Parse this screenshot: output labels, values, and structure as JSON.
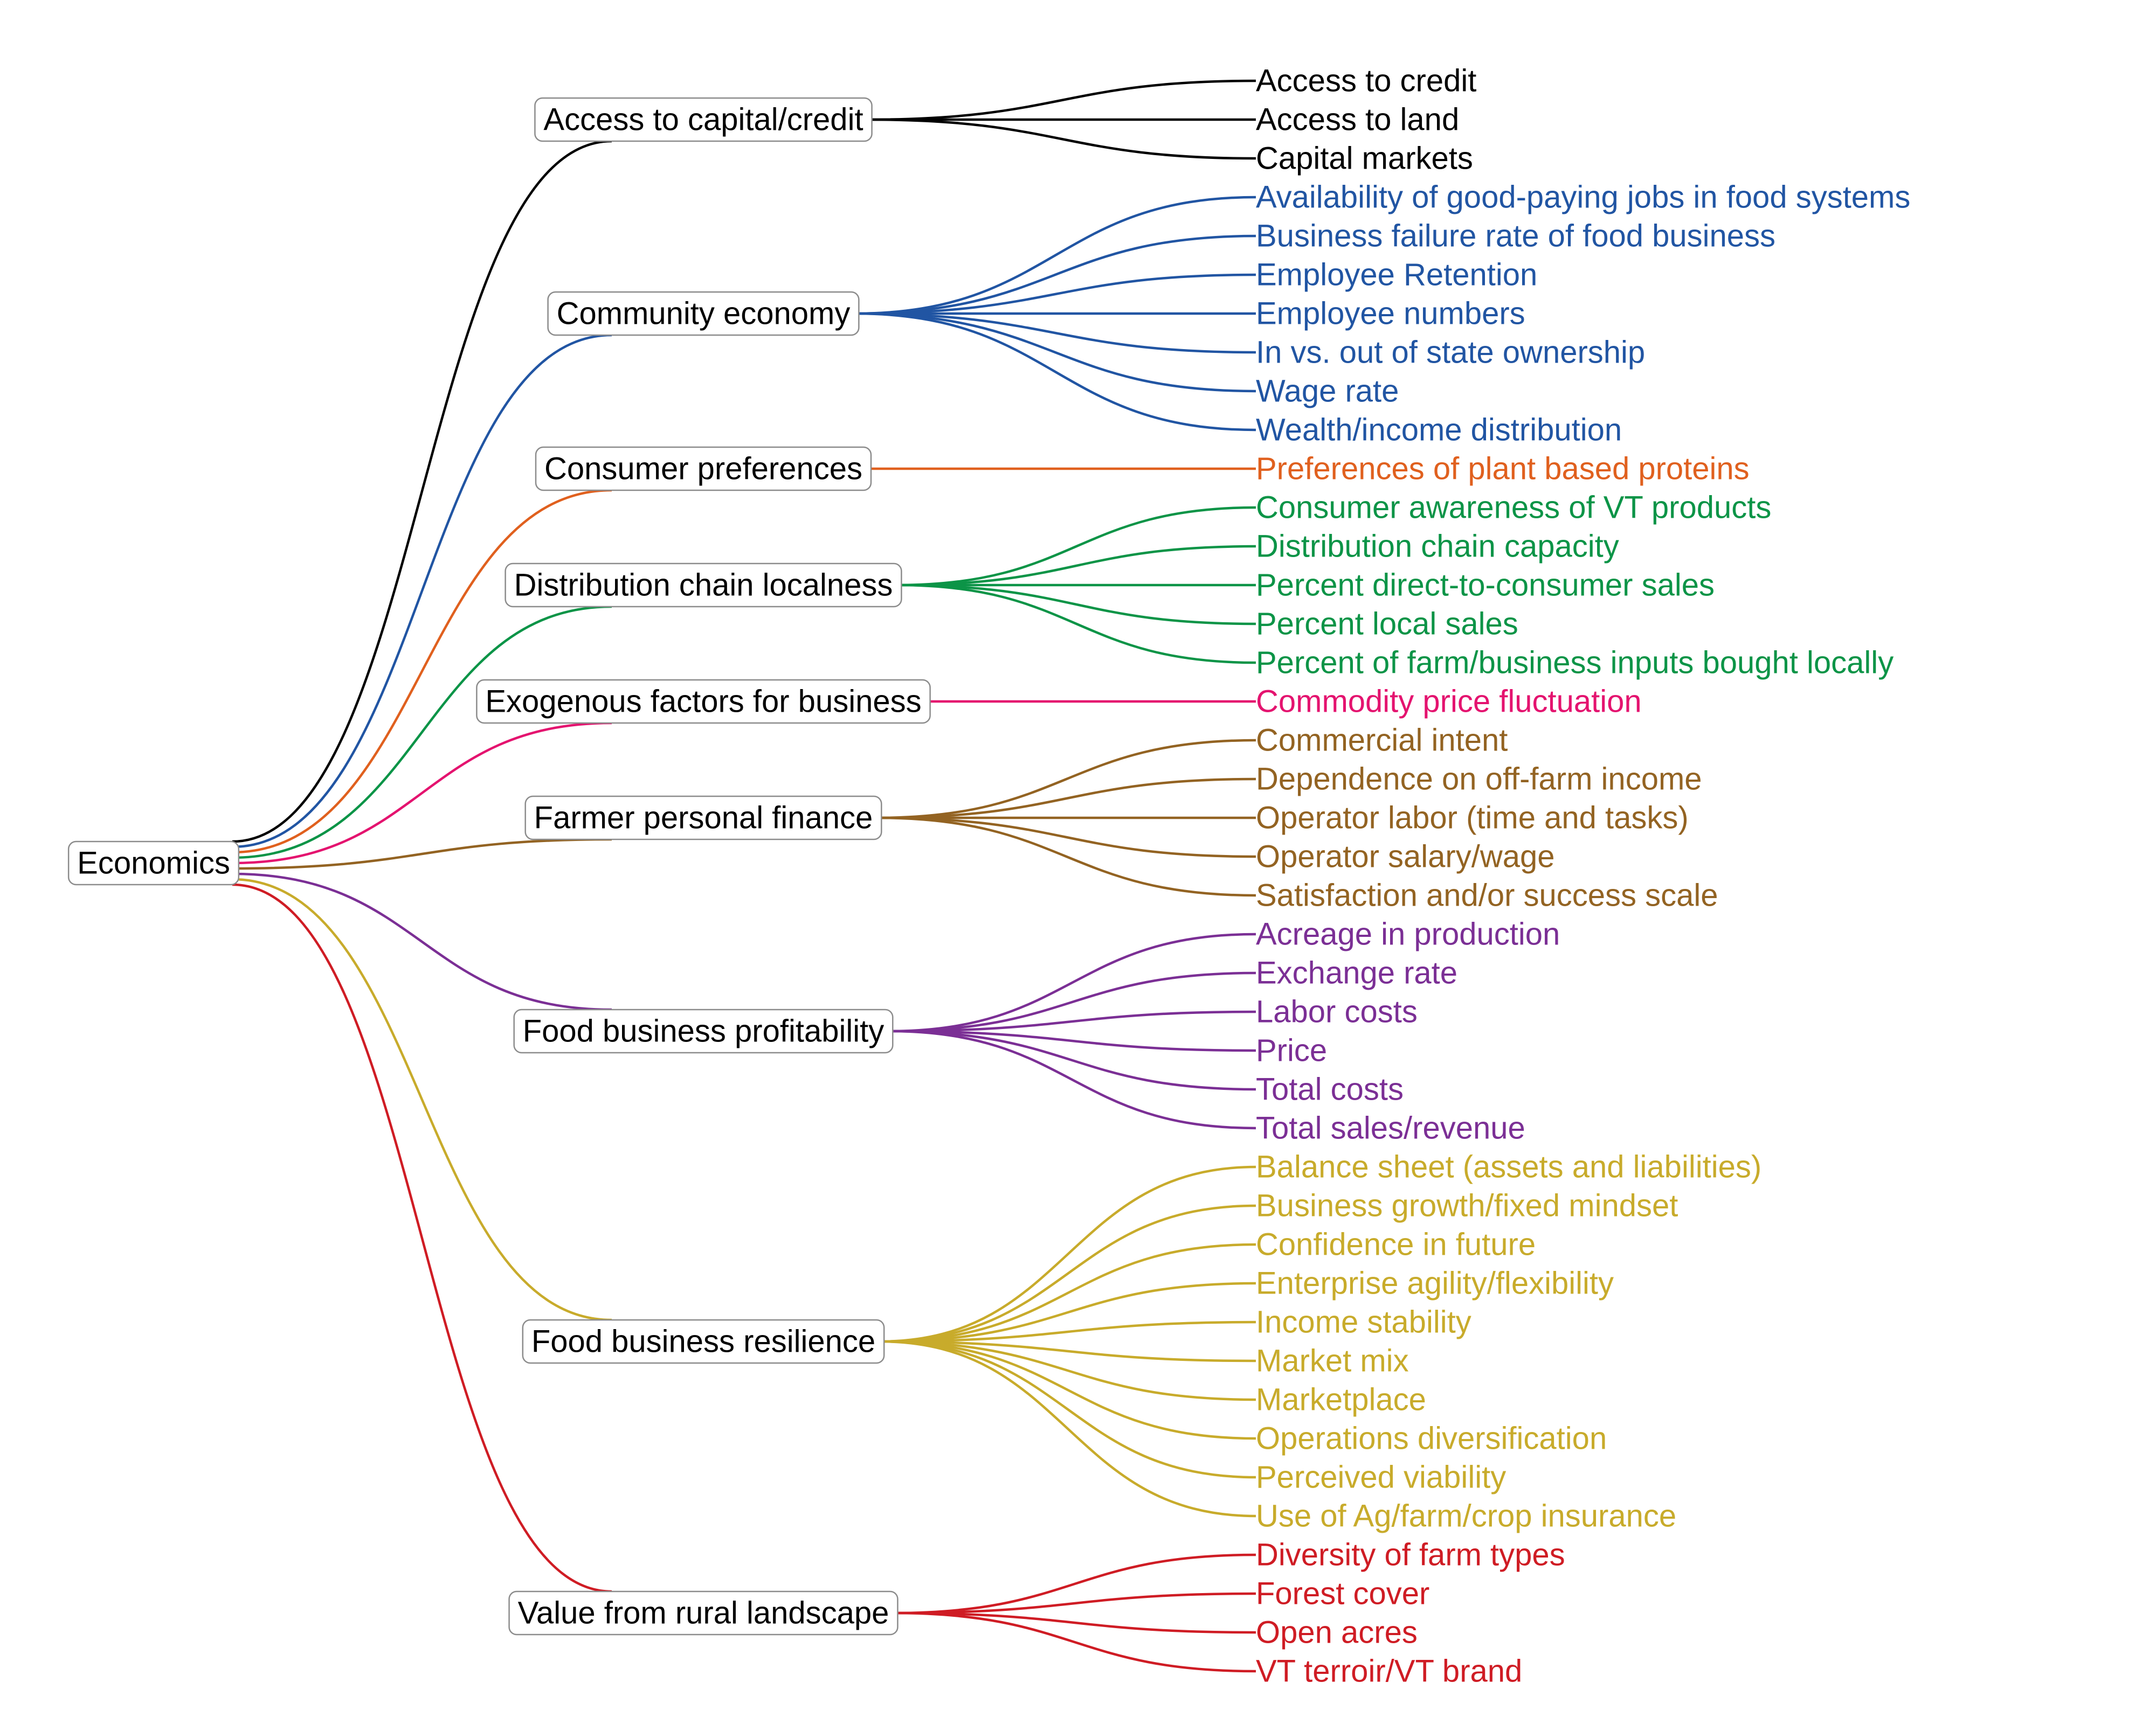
{
  "root": {
    "label": "Economics"
  },
  "categories": [
    {
      "label": "Access to capital/credit",
      "color": "#000000",
      "leaves": [
        "Access to credit",
        "Access to land",
        "Capital markets"
      ]
    },
    {
      "label": "Community economy",
      "color": "#2155A3",
      "leaves": [
        "Availability of good-paying jobs in food systems",
        "Business failure rate of food business",
        "Employee Retention",
        "Employee numbers",
        "In vs. out of state ownership",
        "Wage rate",
        "Wealth/income distribution"
      ]
    },
    {
      "label": "Consumer preferences",
      "color": "#E0601E",
      "leaves": [
        "Preferences of plant based proteins"
      ]
    },
    {
      "label": "Distribution chain localness",
      "color": "#0C9447",
      "leaves": [
        "Consumer awareness of VT products",
        "Distribution chain capacity",
        "Percent direct-to-consumer sales",
        "Percent local sales",
        "Percent of farm/business inputs bought locally"
      ]
    },
    {
      "label": "Exogenous factors for business",
      "color": "#E4136F",
      "leaves": [
        "Commodity price fluctuation"
      ]
    },
    {
      "label": "Farmer personal finance",
      "color": "#936322",
      "leaves": [
        "Commercial intent",
        "Dependence on off-farm income",
        "Operator labor (time and tasks)",
        "Operator salary/wage",
        "Satisfaction and/or success scale"
      ]
    },
    {
      "label": "Food business profitability",
      "color": "#7B2F95",
      "leaves": [
        "Acreage in production",
        "Exchange rate",
        "Labor costs",
        "Price",
        "Total costs",
        "Total sales/revenue"
      ]
    },
    {
      "label": "Food business resilience",
      "color": "#C8AB2B",
      "leaves": [
        "Balance sheet (assets and liabilities)",
        "Business growth/fixed mindset",
        "Confidence in future",
        "Enterprise agility/flexibility",
        "Income stability",
        "Market mix",
        "Marketplace",
        "Operations diversification",
        "Perceived viability",
        "Use of Ag/farm/crop insurance"
      ]
    },
    {
      "label": "Value from rural landscape",
      "color": "#CF1C24",
      "leaves": [
        "Diversity of farm types",
        "Forest cover",
        "Open acres",
        "VT terroir/VT brand"
      ]
    }
  ]
}
